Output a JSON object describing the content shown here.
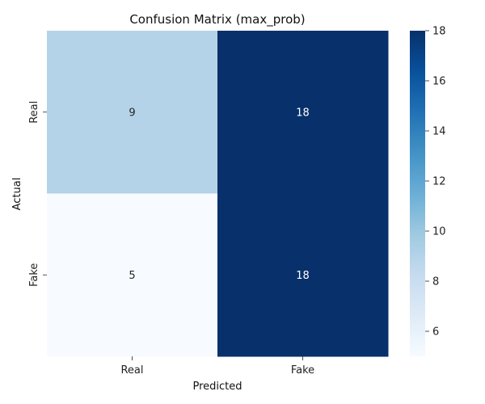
{
  "chart_data": {
    "type": "heatmap",
    "title": "Confusion Matrix (max_prob)",
    "xlabel": "Predicted",
    "ylabel": "Actual",
    "x_categories": [
      "Real",
      "Fake"
    ],
    "y_categories": [
      "Real",
      "Fake"
    ],
    "values": [
      [
        9,
        18
      ],
      [
        5,
        18
      ]
    ],
    "colormap": "Blues",
    "colorbar": {
      "min": 5,
      "max": 18,
      "ticks": [
        6,
        8,
        10,
        12,
        14,
        16,
        18
      ],
      "tick_labels": [
        "6",
        "8",
        "10",
        "12",
        "14",
        "16",
        "18"
      ]
    },
    "grid": false
  }
}
